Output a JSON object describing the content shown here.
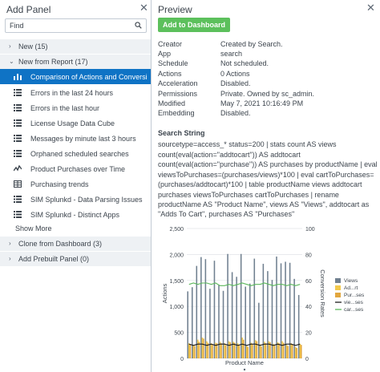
{
  "left_panel": {
    "title": "Add Panel",
    "find_placeholder": "Find",
    "groups": [
      {
        "label": "New (15)",
        "expanded": false
      },
      {
        "label": "New from Report (17)",
        "expanded": true
      },
      {
        "label": "Clone from Dashboard (3)",
        "expanded": false
      },
      {
        "label": "Add Prebuilt Panel (0)",
        "expanded": false
      }
    ],
    "reports": [
      {
        "label": "Comparison of Actions and Conversion Rates by",
        "icon": "column-chart-icon",
        "selected": true
      },
      {
        "label": "Errors in the last 24 hours",
        "icon": "list-icon",
        "selected": false
      },
      {
        "label": "Errors in the last hour",
        "icon": "list-icon",
        "selected": false
      },
      {
        "label": "License Usage Data Cube",
        "icon": "list-icon",
        "selected": false
      },
      {
        "label": "Messages by minute last 3 hours",
        "icon": "list-icon",
        "selected": false
      },
      {
        "label": "Orphaned scheduled searches",
        "icon": "list-icon",
        "selected": false
      },
      {
        "label": "Product Purchases over Time",
        "icon": "line-chart-icon",
        "selected": false
      },
      {
        "label": "Purchasing trends",
        "icon": "table-icon",
        "selected": false
      },
      {
        "label": "SIM Splunkd - Data Parsing Issues",
        "icon": "list-icon",
        "selected": false
      },
      {
        "label": "SIM Splunkd - Distinct Apps",
        "icon": "list-icon",
        "selected": false
      }
    ],
    "show_more": "Show More"
  },
  "preview": {
    "title": "Preview",
    "add_button": "Add to Dashboard",
    "meta": [
      {
        "key": "Creator",
        "value": "Created by Search."
      },
      {
        "key": "App",
        "value": "search"
      },
      {
        "key": "Schedule",
        "value": "Not scheduled."
      },
      {
        "key": "Actions",
        "value": "0 Actions"
      },
      {
        "key": "Acceleration",
        "value": "Disabled."
      },
      {
        "key": "Permissions",
        "value": "Private. Owned by sc_admin."
      },
      {
        "key": "Modified",
        "value": "May 7, 2021 10:16:49 PM"
      },
      {
        "key": "Embedding",
        "value": "Disabled."
      }
    ],
    "search_string_title": "Search String",
    "search_string_lines": [
      "sourcetype=access_* status=200 | stats count AS views",
      "count(eval(action=\"addtocart\")) AS addtocart",
      "count(eval(action=\"purchase\")) AS purchases by productName | eval",
      "viewsToPurchases=(purchases/views)*100 | eval cartToPurchases=",
      "(purchases/addtocart)*100 | table productName views addtocart",
      "purchases viewsToPurchases cartToPurchases | rename",
      "productName AS \"Product Name\", views AS \"Views\", addtocart as",
      "\"Adds To Cart\", purchases AS \"Purchases\""
    ]
  },
  "colors": {
    "selected_bg": "#0f73c5",
    "add_button": "#5cc05c",
    "views_bar": "#708090",
    "addtocart_bar": "#f2c94c",
    "purchases_bar": "#e2a73e",
    "views_to_purchases_line": "#1c1c1c",
    "cart_to_purchases_line": "#5cb85c"
  },
  "chart_data": {
    "type": "bar",
    "xlabel": "Product Name",
    "ylabel": "Actions",
    "y2label": "Conversion Rates",
    "ylim": [
      0,
      2500
    ],
    "y2lim": [
      0,
      100
    ],
    "yticks": [
      "0",
      "500",
      "1,000",
      "1,500",
      "2,000",
      "2,500"
    ],
    "y2ticks": [
      "0",
      "20",
      "40",
      "60",
      "80",
      "100"
    ],
    "legend_position": "right",
    "legend": [
      "Views",
      "Ad...rt",
      "Pur...ses",
      "vie...ses",
      "car...ses"
    ],
    "series": [
      {
        "key": "views",
        "kind": "bar",
        "values": [
          1290,
          1370,
          1780,
          1950,
          1910,
          1340,
          1880,
          1410,
          1300,
          2010,
          1660,
          1570,
          2010,
          1380,
          1440,
          1920,
          1070,
          1820,
          1680,
          1510,
          1960,
          1830,
          1860,
          1840,
          1530,
          1220
        ]
      },
      {
        "key": "addtocart",
        "kind": "bar",
        "values": [
          290,
          260,
          360,
          400,
          330,
          290,
          300,
          320,
          290,
          330,
          320,
          290,
          400,
          240,
          300,
          350,
          270,
          320,
          330,
          280,
          310,
          330,
          260,
          290,
          220,
          280
        ]
      },
      {
        "key": "purchases",
        "kind": "bar",
        "values": [
          270,
          240,
          320,
          380,
          300,
          260,
          290,
          290,
          250,
          310,
          300,
          260,
          360,
          220,
          270,
          330,
          230,
          290,
          310,
          260,
          290,
          300,
          240,
          270,
          200,
          260
        ]
      },
      {
        "key": "viewsToPurchases",
        "kind": "line",
        "axis": "y2",
        "values": [
          11,
          10,
          11,
          11,
          10,
          11,
          10,
          11,
          11,
          10,
          11,
          10,
          11,
          10,
          11,
          11,
          10,
          11,
          11,
          10,
          11,
          10,
          11,
          11,
          10,
          11
        ]
      },
      {
        "key": "cartToPurchases",
        "kind": "line",
        "axis": "y2",
        "values": [
          57,
          58,
          57,
          58,
          58,
          57,
          58,
          56,
          56,
          57,
          56,
          57,
          58,
          57,
          56,
          57,
          57,
          58,
          57,
          56,
          57,
          57,
          56,
          57,
          56,
          57
        ]
      }
    ]
  }
}
